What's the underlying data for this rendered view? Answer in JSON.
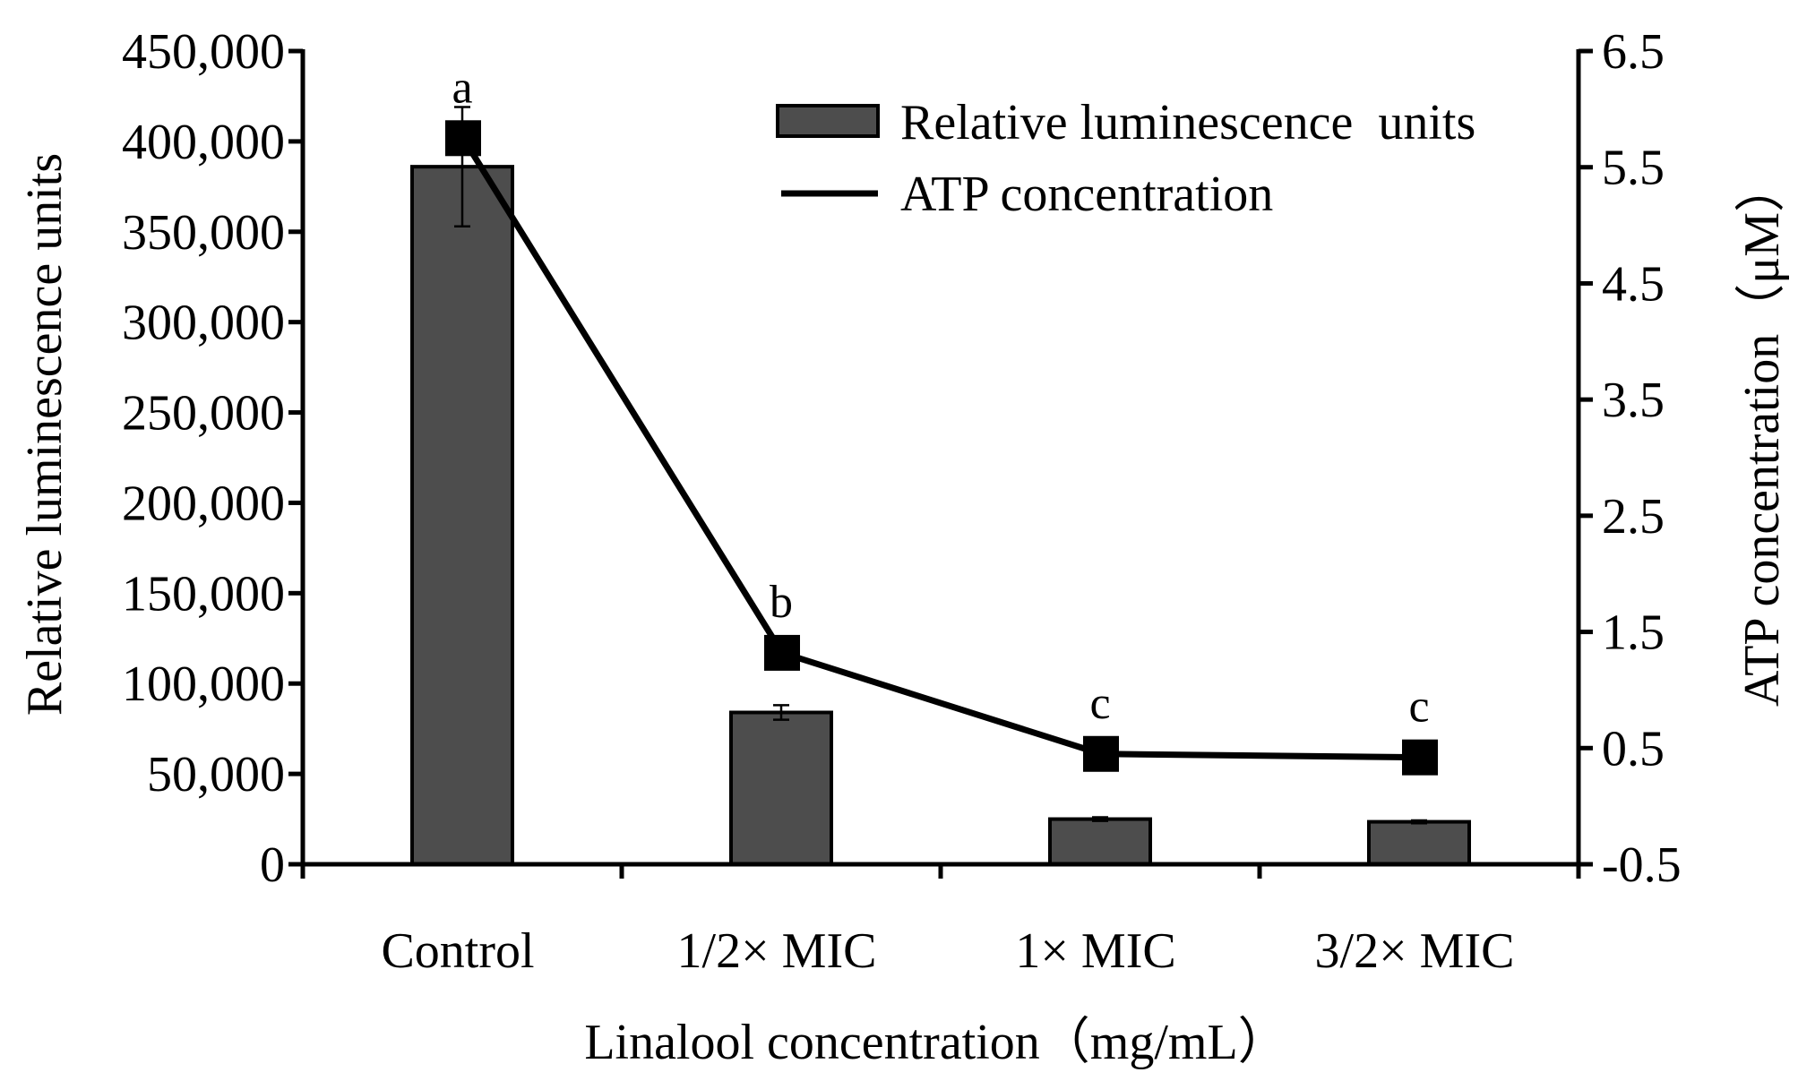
{
  "chart_data": {
    "type": "bar",
    "categories": [
      "Control",
      "1/2× MIC",
      "1× MIC",
      "3/2× MIC"
    ],
    "series": [
      {
        "name": "Relative luminescence  units",
        "kind": "bar",
        "axis": "left",
        "values": [
          386000,
          84000,
          25000,
          23500
        ],
        "errors": [
          33000,
          4000,
          1000,
          800
        ]
      },
      {
        "name": "ATP concentration",
        "kind": "line",
        "axis": "right",
        "values": [
          5.75,
          1.32,
          0.45,
          0.42
        ]
      }
    ],
    "significance_labels": [
      "a",
      "b",
      "c",
      "c"
    ],
    "xlabel": "Linalool concentration（mg/mL）",
    "ylabel_left": "Relative luminescence  units",
    "ylabel_right": "ATP concentration（μM）",
    "ylim_left": [
      0,
      450000
    ],
    "yticks_left": [
      0,
      50000,
      100000,
      150000,
      200000,
      250000,
      300000,
      350000,
      400000,
      450000
    ],
    "ytick_labels_left": [
      "0",
      "50,000",
      "100,000",
      "150,000",
      "200,000",
      "250,000",
      "300,000",
      "350,000",
      "400,000",
      "450,000"
    ],
    "ylim_right": [
      -0.5,
      6.5
    ],
    "yticks_right": [
      -0.5,
      0.5,
      1.5,
      2.5,
      3.5,
      4.5,
      5.5,
      6.5
    ],
    "ytick_labels_right": [
      "-0.5",
      "0.5",
      "1.5",
      "2.5",
      "3.5",
      "4.5",
      "5.5",
      "6.5"
    ],
    "legend_position": "top-right",
    "grid": false,
    "colors": {
      "bar_fill": "#4d4d4d",
      "line": "#000000",
      "marker": "#000000"
    }
  }
}
